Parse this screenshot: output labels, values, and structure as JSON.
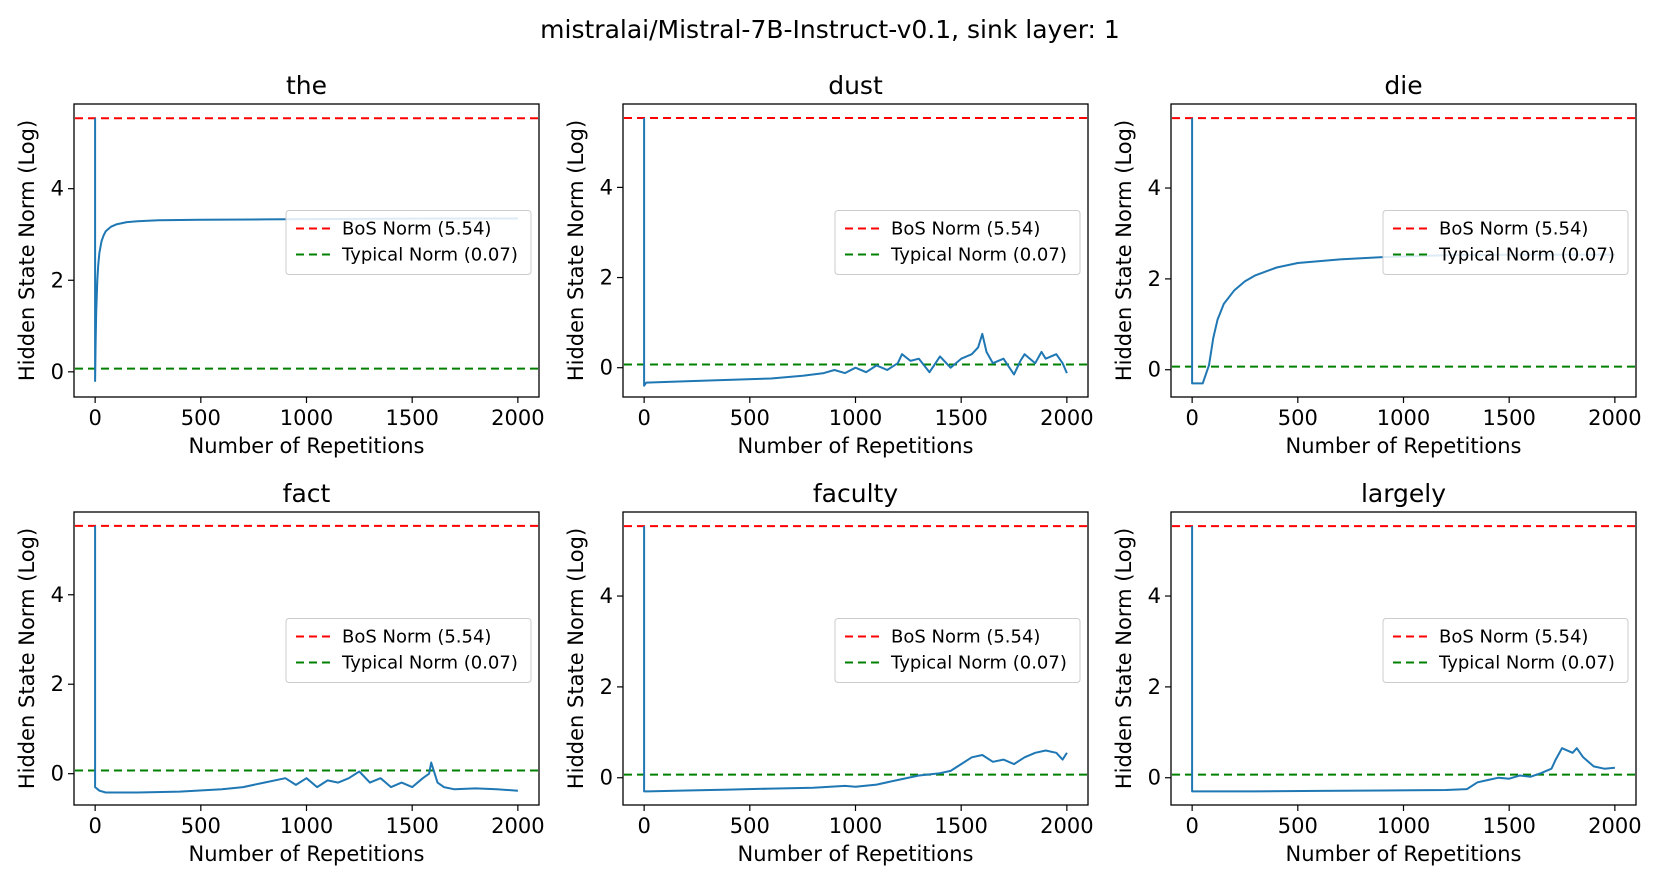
{
  "figure_title": "mistralai/Mistral-7B-Instruct-v0.1, sink layer: 1",
  "chart_data": [
    {
      "type": "line",
      "title": "the",
      "xlabel": "Number of Repetitions",
      "ylabel": "Hidden State Norm (Log)",
      "xlim": [
        -100,
        2100
      ],
      "ylim": [
        -0.55,
        5.85
      ],
      "xticks": [
        0,
        500,
        1000,
        1500,
        2000
      ],
      "yticks": [
        0,
        2,
        4
      ],
      "legend_position": "center-right",
      "reference_lines": [
        {
          "label": "BoS Norm (5.54)",
          "y": 5.54,
          "color": "#ff0000",
          "style": "dashed"
        },
        {
          "label": "Typical Norm (0.07)",
          "y": 0.07,
          "color": "#008000",
          "style": "dashed"
        }
      ],
      "series": [
        {
          "color": "#1f77b4",
          "x": [
            0,
            0,
            2,
            5,
            10,
            15,
            20,
            30,
            40,
            50,
            75,
            100,
            150,
            200,
            300,
            500,
            800,
            1200,
            1600,
            2000
          ],
          "y": [
            5.54,
            -0.2,
            0.6,
            1.3,
            2.0,
            2.35,
            2.6,
            2.85,
            2.98,
            3.07,
            3.17,
            3.22,
            3.27,
            3.29,
            3.31,
            3.32,
            3.33,
            3.34,
            3.35,
            3.35
          ]
        }
      ]
    },
    {
      "type": "line",
      "title": "dust",
      "xlabel": "Number of Repetitions",
      "ylabel": "Hidden State Norm (Log)",
      "xlim": [
        -100,
        2100
      ],
      "ylim": [
        -0.65,
        5.85
      ],
      "xticks": [
        0,
        500,
        1000,
        1500,
        2000
      ],
      "yticks": [
        0,
        2,
        4
      ],
      "legend_position": "center-right",
      "reference_lines": [
        {
          "label": "BoS Norm (5.54)",
          "y": 5.54,
          "color": "#ff0000",
          "style": "dashed"
        },
        {
          "label": "Typical Norm (0.07)",
          "y": 0.07,
          "color": "#008000",
          "style": "dashed"
        }
      ],
      "series": [
        {
          "color": "#1f77b4",
          "x": [
            0,
            0,
            10,
            200,
            400,
            600,
            750,
            850,
            900,
            950,
            1000,
            1050,
            1100,
            1150,
            1200,
            1220,
            1260,
            1300,
            1350,
            1400,
            1450,
            1500,
            1550,
            1580,
            1600,
            1620,
            1650,
            1700,
            1750,
            1780,
            1800,
            1850,
            1880,
            1900,
            1950,
            1980,
            2000
          ],
          "y": [
            5.54,
            -0.4,
            -0.33,
            -0.3,
            -0.27,
            -0.24,
            -0.18,
            -0.12,
            -0.05,
            -0.12,
            0.0,
            -0.1,
            0.05,
            -0.05,
            0.1,
            0.3,
            0.15,
            0.2,
            -0.1,
            0.25,
            0.0,
            0.2,
            0.3,
            0.45,
            0.75,
            0.35,
            0.1,
            0.2,
            -0.15,
            0.15,
            0.3,
            0.1,
            0.35,
            0.2,
            0.3,
            0.1,
            -0.12
          ]
        }
      ]
    },
    {
      "type": "line",
      "title": "die",
      "xlabel": "Number of Repetitions",
      "ylabel": "Hidden State Norm (Log)",
      "xlim": [
        -100,
        2100
      ],
      "ylim": [
        -0.6,
        5.85
      ],
      "xticks": [
        0,
        500,
        1000,
        1500,
        2000
      ],
      "yticks": [
        0,
        2,
        4
      ],
      "legend_position": "center-right",
      "reference_lines": [
        {
          "label": "BoS Norm (5.54)",
          "y": 5.54,
          "color": "#ff0000",
          "style": "dashed"
        },
        {
          "label": "Typical Norm (0.07)",
          "y": 0.07,
          "color": "#008000",
          "style": "dashed"
        }
      ],
      "series": [
        {
          "color": "#1f77b4",
          "x": [
            0,
            0,
            20,
            50,
            80,
            100,
            120,
            150,
            200,
            250,
            300,
            400,
            500,
            700,
            900,
            1200,
            1500,
            1800,
            2000
          ],
          "y": [
            5.54,
            -0.3,
            -0.3,
            -0.3,
            0.1,
            0.7,
            1.1,
            1.45,
            1.75,
            1.95,
            2.08,
            2.25,
            2.35,
            2.43,
            2.48,
            2.52,
            2.53,
            2.53,
            2.53
          ]
        }
      ]
    },
    {
      "type": "line",
      "title": "fact",
      "xlabel": "Number of Repetitions",
      "ylabel": "Hidden State Norm (Log)",
      "xlim": [
        -100,
        2100
      ],
      "ylim": [
        -0.7,
        5.85
      ],
      "xticks": [
        0,
        500,
        1000,
        1500,
        2000
      ],
      "yticks": [
        0,
        2,
        4
      ],
      "legend_position": "center-right",
      "reference_lines": [
        {
          "label": "BoS Norm (5.54)",
          "y": 5.54,
          "color": "#ff0000",
          "style": "dashed"
        },
        {
          "label": "Typical Norm (0.07)",
          "y": 0.07,
          "color": "#008000",
          "style": "dashed"
        }
      ],
      "series": [
        {
          "color": "#1f77b4",
          "x": [
            0,
            0,
            20,
            50,
            200,
            400,
            600,
            700,
            800,
            900,
            950,
            1000,
            1050,
            1100,
            1150,
            1200,
            1250,
            1300,
            1350,
            1400,
            1450,
            1500,
            1550,
            1580,
            1590,
            1600,
            1620,
            1650,
            1700,
            1800,
            1900,
            2000
          ],
          "y": [
            5.54,
            -0.3,
            -0.38,
            -0.42,
            -0.42,
            -0.4,
            -0.35,
            -0.3,
            -0.2,
            -0.1,
            -0.25,
            -0.1,
            -0.3,
            -0.15,
            -0.2,
            -0.1,
            0.05,
            -0.2,
            -0.1,
            -0.3,
            -0.2,
            -0.3,
            -0.1,
            0.0,
            0.25,
            0.1,
            -0.2,
            -0.3,
            -0.35,
            -0.33,
            -0.35,
            -0.38
          ]
        }
      ]
    },
    {
      "type": "line",
      "title": "faculty",
      "xlabel": "Number of Repetitions",
      "ylabel": "Hidden State Norm (Log)",
      "xlim": [
        -100,
        2100
      ],
      "ylim": [
        -0.6,
        5.85
      ],
      "xticks": [
        0,
        500,
        1000,
        1500,
        2000
      ],
      "yticks": [
        0,
        2,
        4
      ],
      "legend_position": "center-right",
      "reference_lines": [
        {
          "label": "BoS Norm (5.54)",
          "y": 5.54,
          "color": "#ff0000",
          "style": "dashed"
        },
        {
          "label": "Typical Norm (0.07)",
          "y": 0.07,
          "color": "#008000",
          "style": "dashed"
        }
      ],
      "series": [
        {
          "color": "#1f77b4",
          "x": [
            0,
            0,
            20,
            200,
            400,
            600,
            800,
            950,
            1000,
            1100,
            1200,
            1300,
            1400,
            1450,
            1500,
            1550,
            1600,
            1650,
            1700,
            1750,
            1800,
            1850,
            1900,
            1950,
            1980,
            2000
          ],
          "y": [
            5.54,
            -0.3,
            -0.3,
            -0.28,
            -0.26,
            -0.24,
            -0.22,
            -0.18,
            -0.2,
            -0.15,
            -0.05,
            0.05,
            0.1,
            0.15,
            0.3,
            0.45,
            0.5,
            0.35,
            0.4,
            0.3,
            0.45,
            0.55,
            0.6,
            0.55,
            0.4,
            0.55
          ]
        }
      ]
    },
    {
      "type": "line",
      "title": "largely",
      "xlabel": "Number of Repetitions",
      "ylabel": "Hidden State Norm (Log)",
      "xlim": [
        -100,
        2100
      ],
      "ylim": [
        -0.6,
        5.85
      ],
      "xticks": [
        0,
        500,
        1000,
        1500,
        2000
      ],
      "yticks": [
        0,
        2,
        4
      ],
      "legend_position": "center-right",
      "reference_lines": [
        {
          "label": "BoS Norm (5.54)",
          "y": 5.54,
          "color": "#ff0000",
          "style": "dashed"
        },
        {
          "label": "Typical Norm (0.07)",
          "y": 0.07,
          "color": "#008000",
          "style": "dashed"
        }
      ],
      "series": [
        {
          "color": "#1f77b4",
          "x": [
            0,
            0,
            20,
            300,
            600,
            900,
            1200,
            1300,
            1350,
            1400,
            1450,
            1500,
            1550,
            1600,
            1650,
            1700,
            1720,
            1750,
            1800,
            1820,
            1850,
            1900,
            1950,
            2000
          ],
          "y": [
            5.54,
            -0.3,
            -0.3,
            -0.3,
            -0.29,
            -0.28,
            -0.27,
            -0.25,
            -0.1,
            -0.05,
            0.0,
            -0.02,
            0.05,
            0.02,
            0.1,
            0.2,
            0.4,
            0.65,
            0.55,
            0.65,
            0.45,
            0.25,
            0.2,
            0.22
          ]
        }
      ]
    }
  ]
}
